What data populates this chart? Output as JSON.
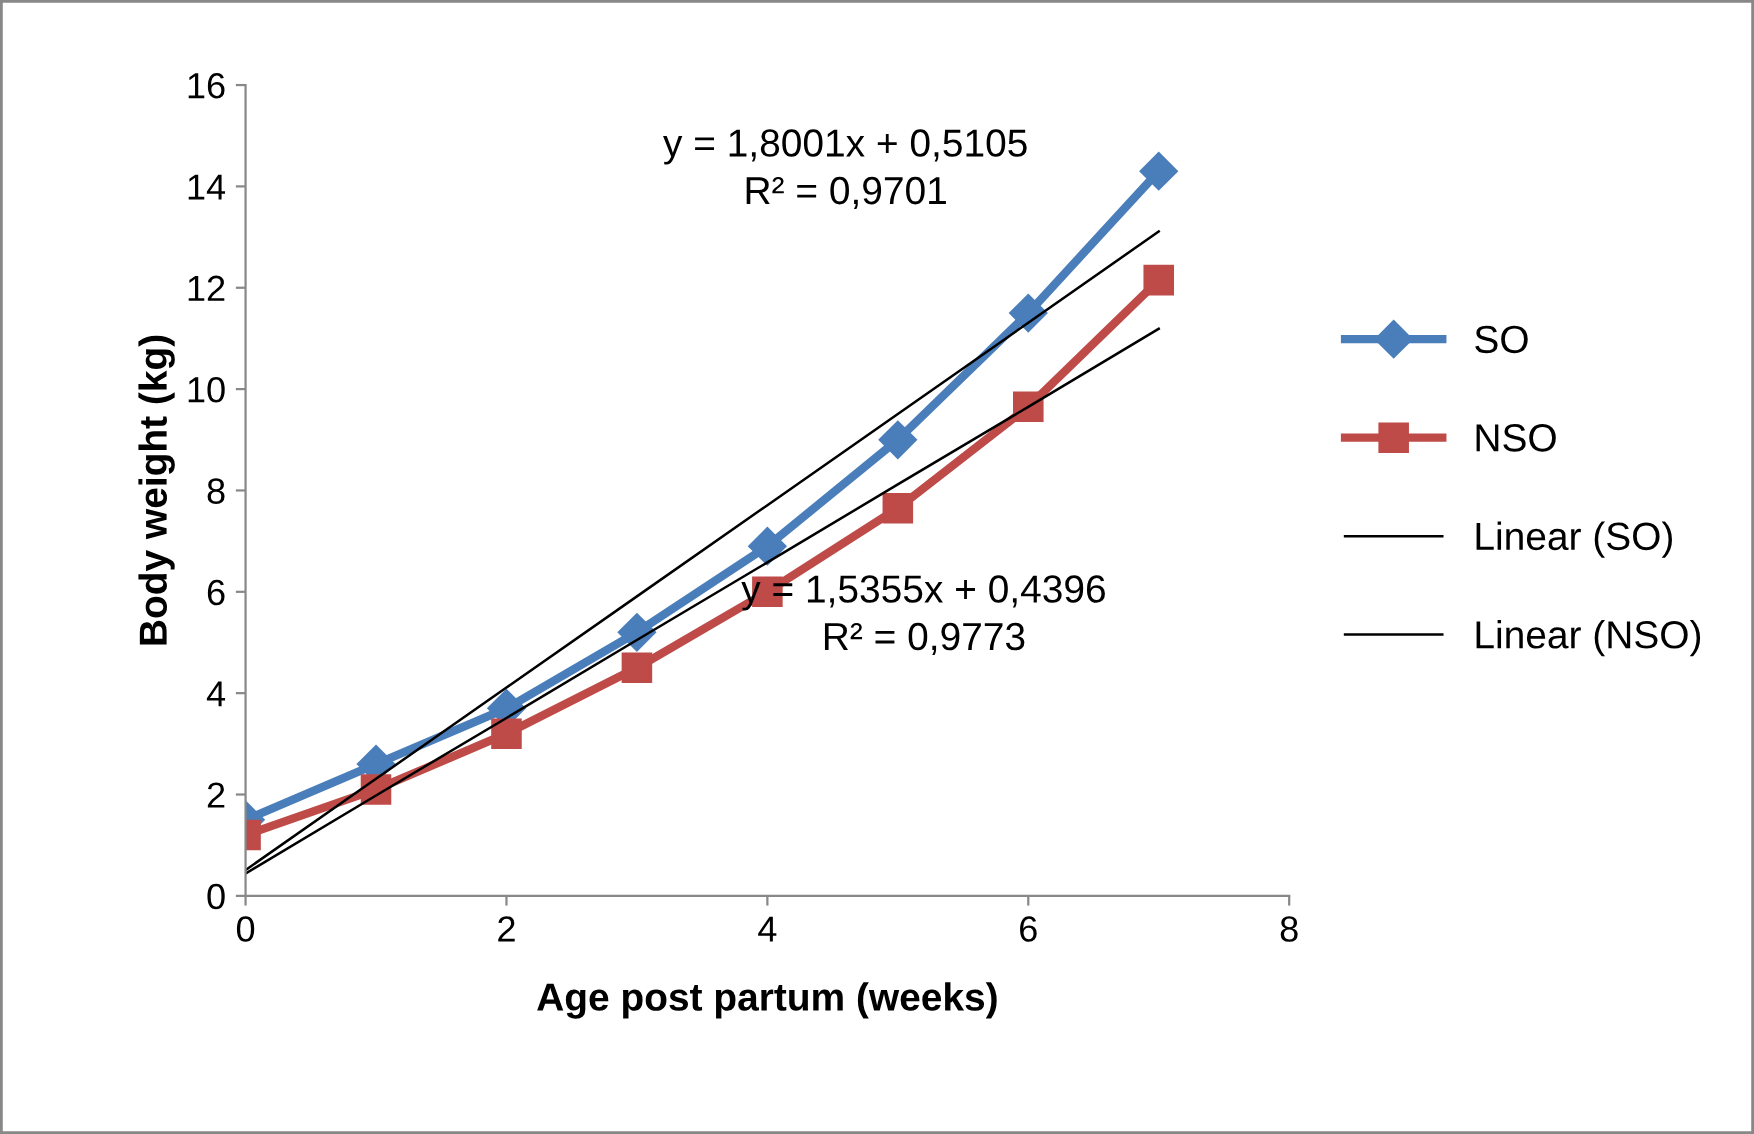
{
  "chart_data": {
    "type": "line",
    "xlabel": "Age post partum (weeks)",
    "ylabel": "Body weight (kg)",
    "x": [
      0,
      1,
      2,
      3,
      4,
      5,
      6,
      7
    ],
    "series": [
      {
        "name": "SO",
        "color": "#4a7ebb",
        "marker": "diamond",
        "values": [
          1.5,
          2.6,
          3.7,
          5.2,
          6.9,
          9.0,
          11.5,
          14.3
        ]
      },
      {
        "name": "NSO",
        "color": "#be4b48",
        "marker": "square",
        "values": [
          1.2,
          2.1,
          3.2,
          4.5,
          6.0,
          7.65,
          9.65,
          12.15
        ]
      },
      {
        "name": "Linear (SO)",
        "color": "#000000",
        "marker": "none",
        "values": [
          0.51,
          2.31,
          4.11,
          5.91,
          7.71,
          9.51,
          11.31,
          13.11
        ]
      },
      {
        "name": "Linear (NSO)",
        "color": "#000000",
        "marker": "none",
        "values": [
          0.44,
          1.98,
          3.51,
          5.05,
          6.58,
          8.12,
          9.65,
          11.19
        ]
      }
    ],
    "annotations": [
      "y = 1,8001x + 0,5105\nR² = 0,9701",
      "y = 1,5355x + 0,4396\nR² = 0,9773"
    ],
    "xlim": [
      0,
      8
    ],
    "ylim": [
      0,
      16
    ],
    "xticks": [
      0,
      2,
      4,
      6,
      8
    ],
    "yticks": [
      0,
      2,
      4,
      6,
      8,
      10,
      12,
      14,
      16
    ],
    "grid": false,
    "legend": "right",
    "line_style": "solid"
  }
}
